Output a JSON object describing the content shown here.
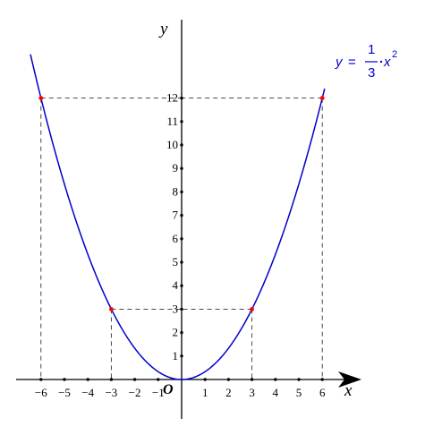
{
  "chart_data": {
    "type": "line",
    "title": "",
    "xlabel": "x",
    "ylabel": "y",
    "origin_label": "O",
    "xlim": [
      -7,
      7.5
    ],
    "ylim": [
      -2.6,
      15.2
    ],
    "grid": false,
    "x_ticks": [
      -6,
      -5,
      -4,
      -3,
      -2,
      -1,
      1,
      2,
      3,
      4,
      5,
      6
    ],
    "x_tick_labels": [
      "−6",
      "−5",
      "−4",
      "−3",
      "−2",
      "−1",
      "1",
      "2",
      "3",
      "4",
      "5",
      "6"
    ],
    "y_ticks": [
      1,
      2,
      3,
      4,
      5,
      6,
      7,
      8,
      9,
      10,
      11,
      12
    ],
    "y_tick_labels": [
      "1",
      "2",
      "3",
      "4",
      "5",
      "6",
      "7",
      "8",
      "9",
      "10",
      "11",
      "12"
    ],
    "series": [
      {
        "name": "y = 1/3·x²",
        "function": "(1/3)*x^2",
        "x_range": [
          -6.45,
          6.1
        ],
        "color": "#0000cc",
        "points": [
          [
            -6,
            12
          ],
          [
            -3,
            3
          ],
          [
            0,
            0
          ],
          [
            3,
            3
          ],
          [
            6,
            12
          ]
        ]
      }
    ],
    "highlighted_points": [
      [
        -6,
        12
      ],
      [
        -3,
        3
      ],
      [
        3,
        3
      ],
      [
        6,
        12
      ]
    ],
    "highlight_color": "#ff0000",
    "guide_lines": "dashed",
    "equation": {
      "lhs": "y",
      "equals": "=",
      "numerator": "1",
      "denominator": "3",
      "variable": "x",
      "exponent": "2"
    }
  }
}
